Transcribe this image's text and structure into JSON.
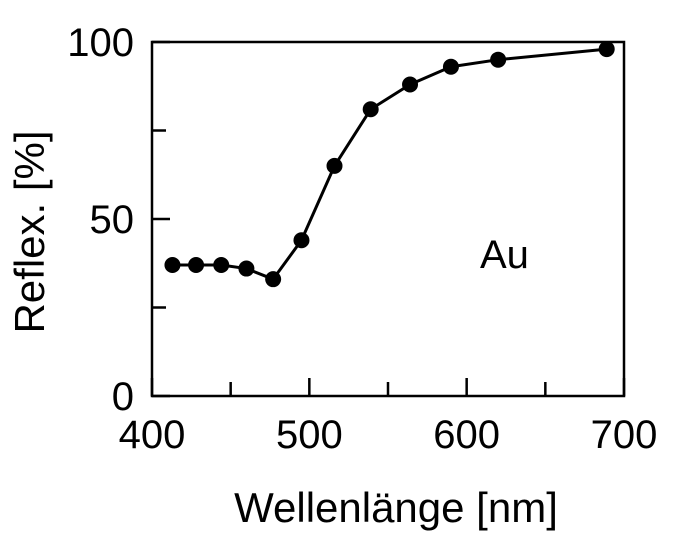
{
  "chart_data": {
    "type": "line",
    "title": "",
    "xlabel": "Wellenlänge  [nm]",
    "ylabel": "Reflex.  [%]",
    "xlim": [
      400,
      700
    ],
    "ylim": [
      0,
      100
    ],
    "x_ticks": [
      400,
      500,
      600,
      700
    ],
    "x_tick_labels": [
      "400",
      "500",
      "600",
      "700"
    ],
    "x_minor_ticks": [
      450,
      550,
      650
    ],
    "y_ticks": [
      0,
      50,
      100
    ],
    "y_tick_labels": [
      "0",
      "50",
      "100"
    ],
    "y_minor_ticks": [
      25,
      75
    ],
    "grid": false,
    "annotation": "Au",
    "series": [
      {
        "x": [
          413,
          428,
          444,
          460,
          477,
          495,
          516,
          539,
          564,
          590,
          620,
          689
        ],
        "y": [
          37,
          37,
          37,
          36,
          33,
          44,
          65,
          81,
          88,
          93,
          95,
          98
        ],
        "color": "#000000",
        "marker": "circle"
      }
    ]
  }
}
